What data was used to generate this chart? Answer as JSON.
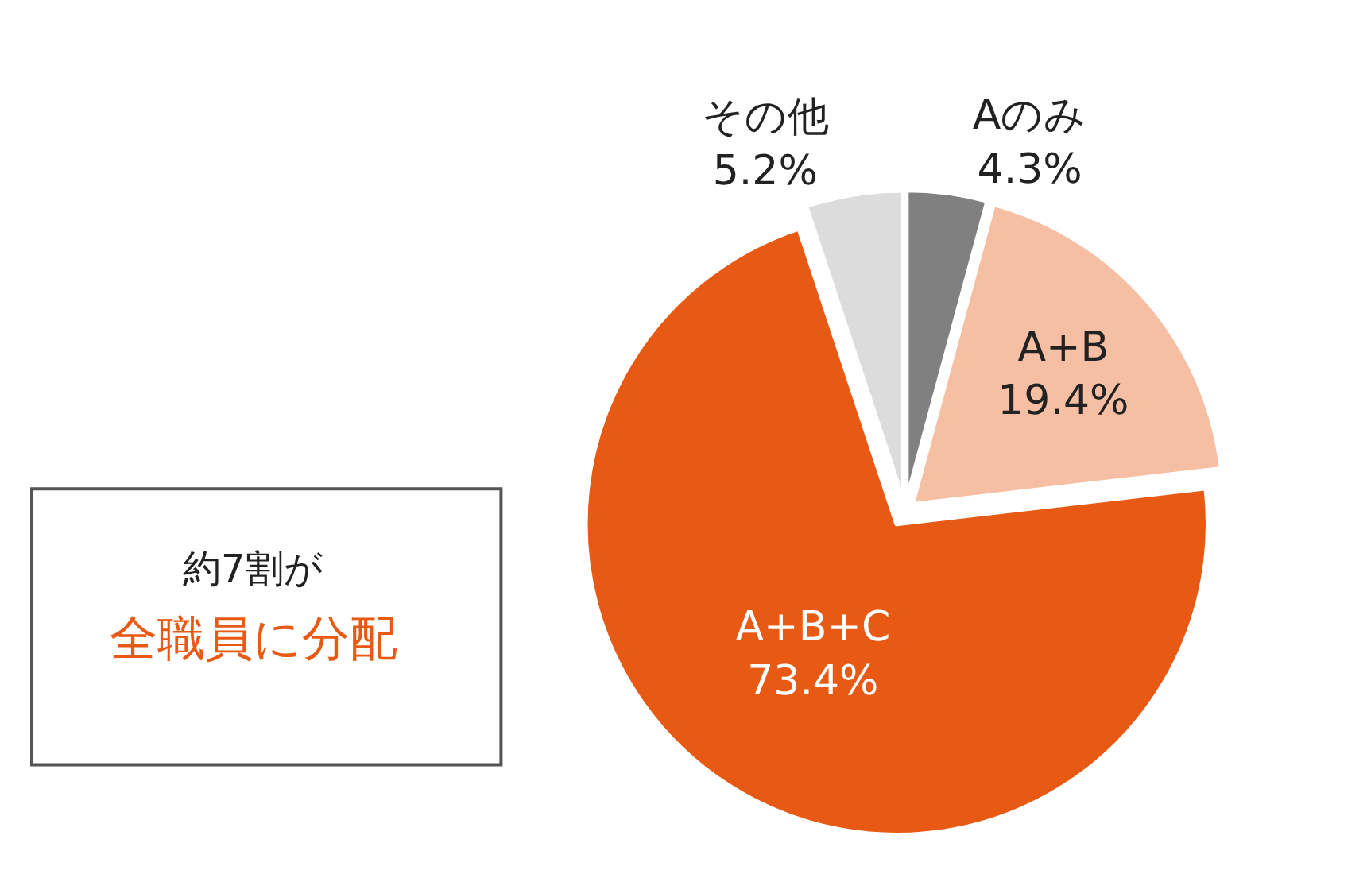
{
  "chart_data": {
    "type": "pie",
    "categories": [
      "Aのみ",
      "A+B",
      "A+B+C",
      "その他"
    ],
    "values": [
      4.3,
      19.4,
      73.4,
      5.2
    ],
    "value_labels": [
      "4.3%",
      "19.4%",
      "73.4%",
      "5.2%"
    ],
    "colors": [
      "#808080",
      "#f6bfa4",
      "#e85a14",
      "#dcdcdc"
    ],
    "annotations": [
      "約7割が",
      "全職員に分配"
    ],
    "legend": false
  }
}
